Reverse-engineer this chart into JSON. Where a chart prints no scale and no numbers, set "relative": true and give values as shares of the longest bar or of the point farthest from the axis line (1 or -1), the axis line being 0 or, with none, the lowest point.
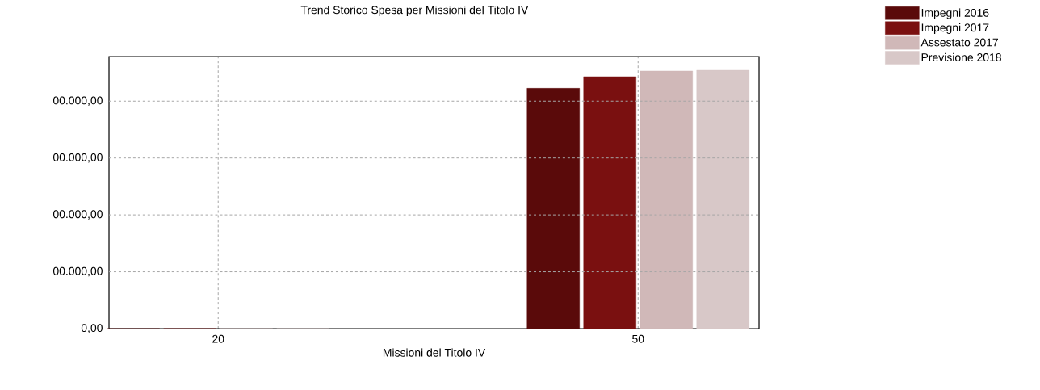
{
  "chart_data": {
    "type": "bar",
    "title": "Trend Storico Spesa per Missioni del Titolo IV",
    "xlabel": "Missioni del Titolo IV",
    "categories": [
      "20",
      "50"
    ],
    "relative": true,
    "series": [
      {
        "name": "Impegni 2016",
        "color": "#5a0a0a",
        "values": [
          0,
          0.93
        ]
      },
      {
        "name": "Impegni 2017",
        "color": "#7a1010",
        "values": [
          0,
          0.975
        ]
      },
      {
        "name": "Assestato 2017",
        "color": "#d0b8b8",
        "values": [
          0,
          0.997
        ]
      },
      {
        "name": "Previsione 2018",
        "color": "#d8c8c8",
        "values": [
          0,
          1
        ]
      }
    ],
    "annotations": [
      "0,00",
      "00.000,00",
      "00.000,00",
      "00.000,00",
      "00.000,00"
    ],
    "grid": true,
    "legend": "top right"
  }
}
